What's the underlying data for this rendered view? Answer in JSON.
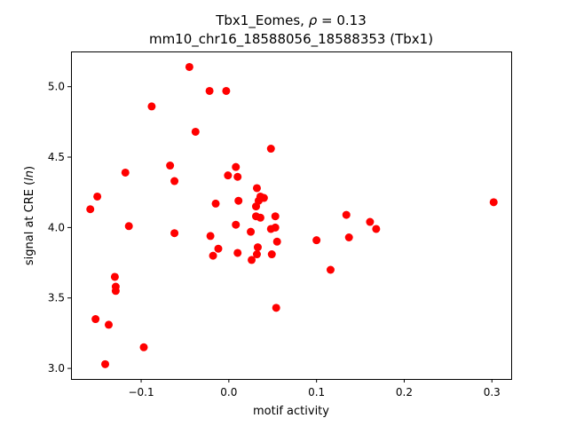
{
  "chart_data": {
    "type": "scatter",
    "title_line1": "Tbx1_Eomes, ",
    "title_rho": "ρ",
    "title_rho_value": " = 0.13",
    "title_line2": "mm10_chr16_18588056_18588353 (Tbx1)",
    "xlabel": "motif activity",
    "ylabel_prefix": "signal at CRE (",
    "ylabel_italic": "ln",
    "ylabel_suffix": ")",
    "xlim": [
      -0.18,
      0.322
    ],
    "ylim": [
      2.925,
      5.25
    ],
    "xticks": [
      -0.1,
      0.0,
      0.1,
      0.2,
      0.3
    ],
    "xtick_labels": [
      "−0.1",
      "0.0",
      "0.1",
      "0.2",
      "0.3"
    ],
    "yticks": [
      3.0,
      3.5,
      4.0,
      4.5,
      5.0
    ],
    "ytick_labels": [
      "3.0",
      "3.5",
      "4.0",
      "4.5",
      "5.0"
    ],
    "grid": false,
    "marker_color": "#ff0000",
    "points": [
      {
        "x": -0.045,
        "y": 5.14
      },
      {
        "x": -0.022,
        "y": 4.97
      },
      {
        "x": -0.003,
        "y": 4.97
      },
      {
        "x": -0.088,
        "y": 4.86
      },
      {
        "x": -0.038,
        "y": 4.68
      },
      {
        "x": 0.048,
        "y": 4.56
      },
      {
        "x": -0.067,
        "y": 4.44
      },
      {
        "x": 0.008,
        "y": 4.43
      },
      {
        "x": -0.118,
        "y": 4.39
      },
      {
        "x": -0.001,
        "y": 4.37
      },
      {
        "x": 0.01,
        "y": 4.36
      },
      {
        "x": -0.062,
        "y": 4.33
      },
      {
        "x": 0.032,
        "y": 4.28
      },
      {
        "x": -0.15,
        "y": 4.22
      },
      {
        "x": 0.036,
        "y": 4.22
      },
      {
        "x": 0.04,
        "y": 4.21
      },
      {
        "x": 0.034,
        "y": 4.19
      },
      {
        "x": 0.011,
        "y": 4.19
      },
      {
        "x": -0.015,
        "y": 4.17
      },
      {
        "x": 0.031,
        "y": 4.15
      },
      {
        "x": 0.302,
        "y": 4.18
      },
      {
        "x": -0.158,
        "y": 4.13
      },
      {
        "x": 0.134,
        "y": 4.09
      },
      {
        "x": 0.031,
        "y": 4.08
      },
      {
        "x": 0.053,
        "y": 4.08
      },
      {
        "x": 0.036,
        "y": 4.07
      },
      {
        "x": 0.161,
        "y": 4.04
      },
      {
        "x": 0.008,
        "y": 4.02
      },
      {
        "x": -0.114,
        "y": 4.01
      },
      {
        "x": 0.053,
        "y": 4.0
      },
      {
        "x": 0.048,
        "y": 3.99
      },
      {
        "x": 0.168,
        "y": 3.99
      },
      {
        "x": 0.025,
        "y": 3.97
      },
      {
        "x": -0.062,
        "y": 3.96
      },
      {
        "x": -0.021,
        "y": 3.94
      },
      {
        "x": 0.137,
        "y": 3.93
      },
      {
        "x": 0.1,
        "y": 3.91
      },
      {
        "x": 0.055,
        "y": 3.9
      },
      {
        "x": 0.033,
        "y": 3.86
      },
      {
        "x": -0.012,
        "y": 3.85
      },
      {
        "x": 0.01,
        "y": 3.82
      },
      {
        "x": 0.032,
        "y": 3.81
      },
      {
        "x": 0.049,
        "y": 3.81
      },
      {
        "x": -0.018,
        "y": 3.8
      },
      {
        "x": 0.026,
        "y": 3.77
      },
      {
        "x": 0.116,
        "y": 3.7
      },
      {
        "x": -0.13,
        "y": 3.65
      },
      {
        "x": -0.129,
        "y": 3.58
      },
      {
        "x": -0.129,
        "y": 3.55
      },
      {
        "x": 0.054,
        "y": 3.43
      },
      {
        "x": -0.152,
        "y": 3.35
      },
      {
        "x": -0.137,
        "y": 3.31
      },
      {
        "x": -0.097,
        "y": 3.15
      },
      {
        "x": -0.141,
        "y": 3.03
      }
    ]
  }
}
